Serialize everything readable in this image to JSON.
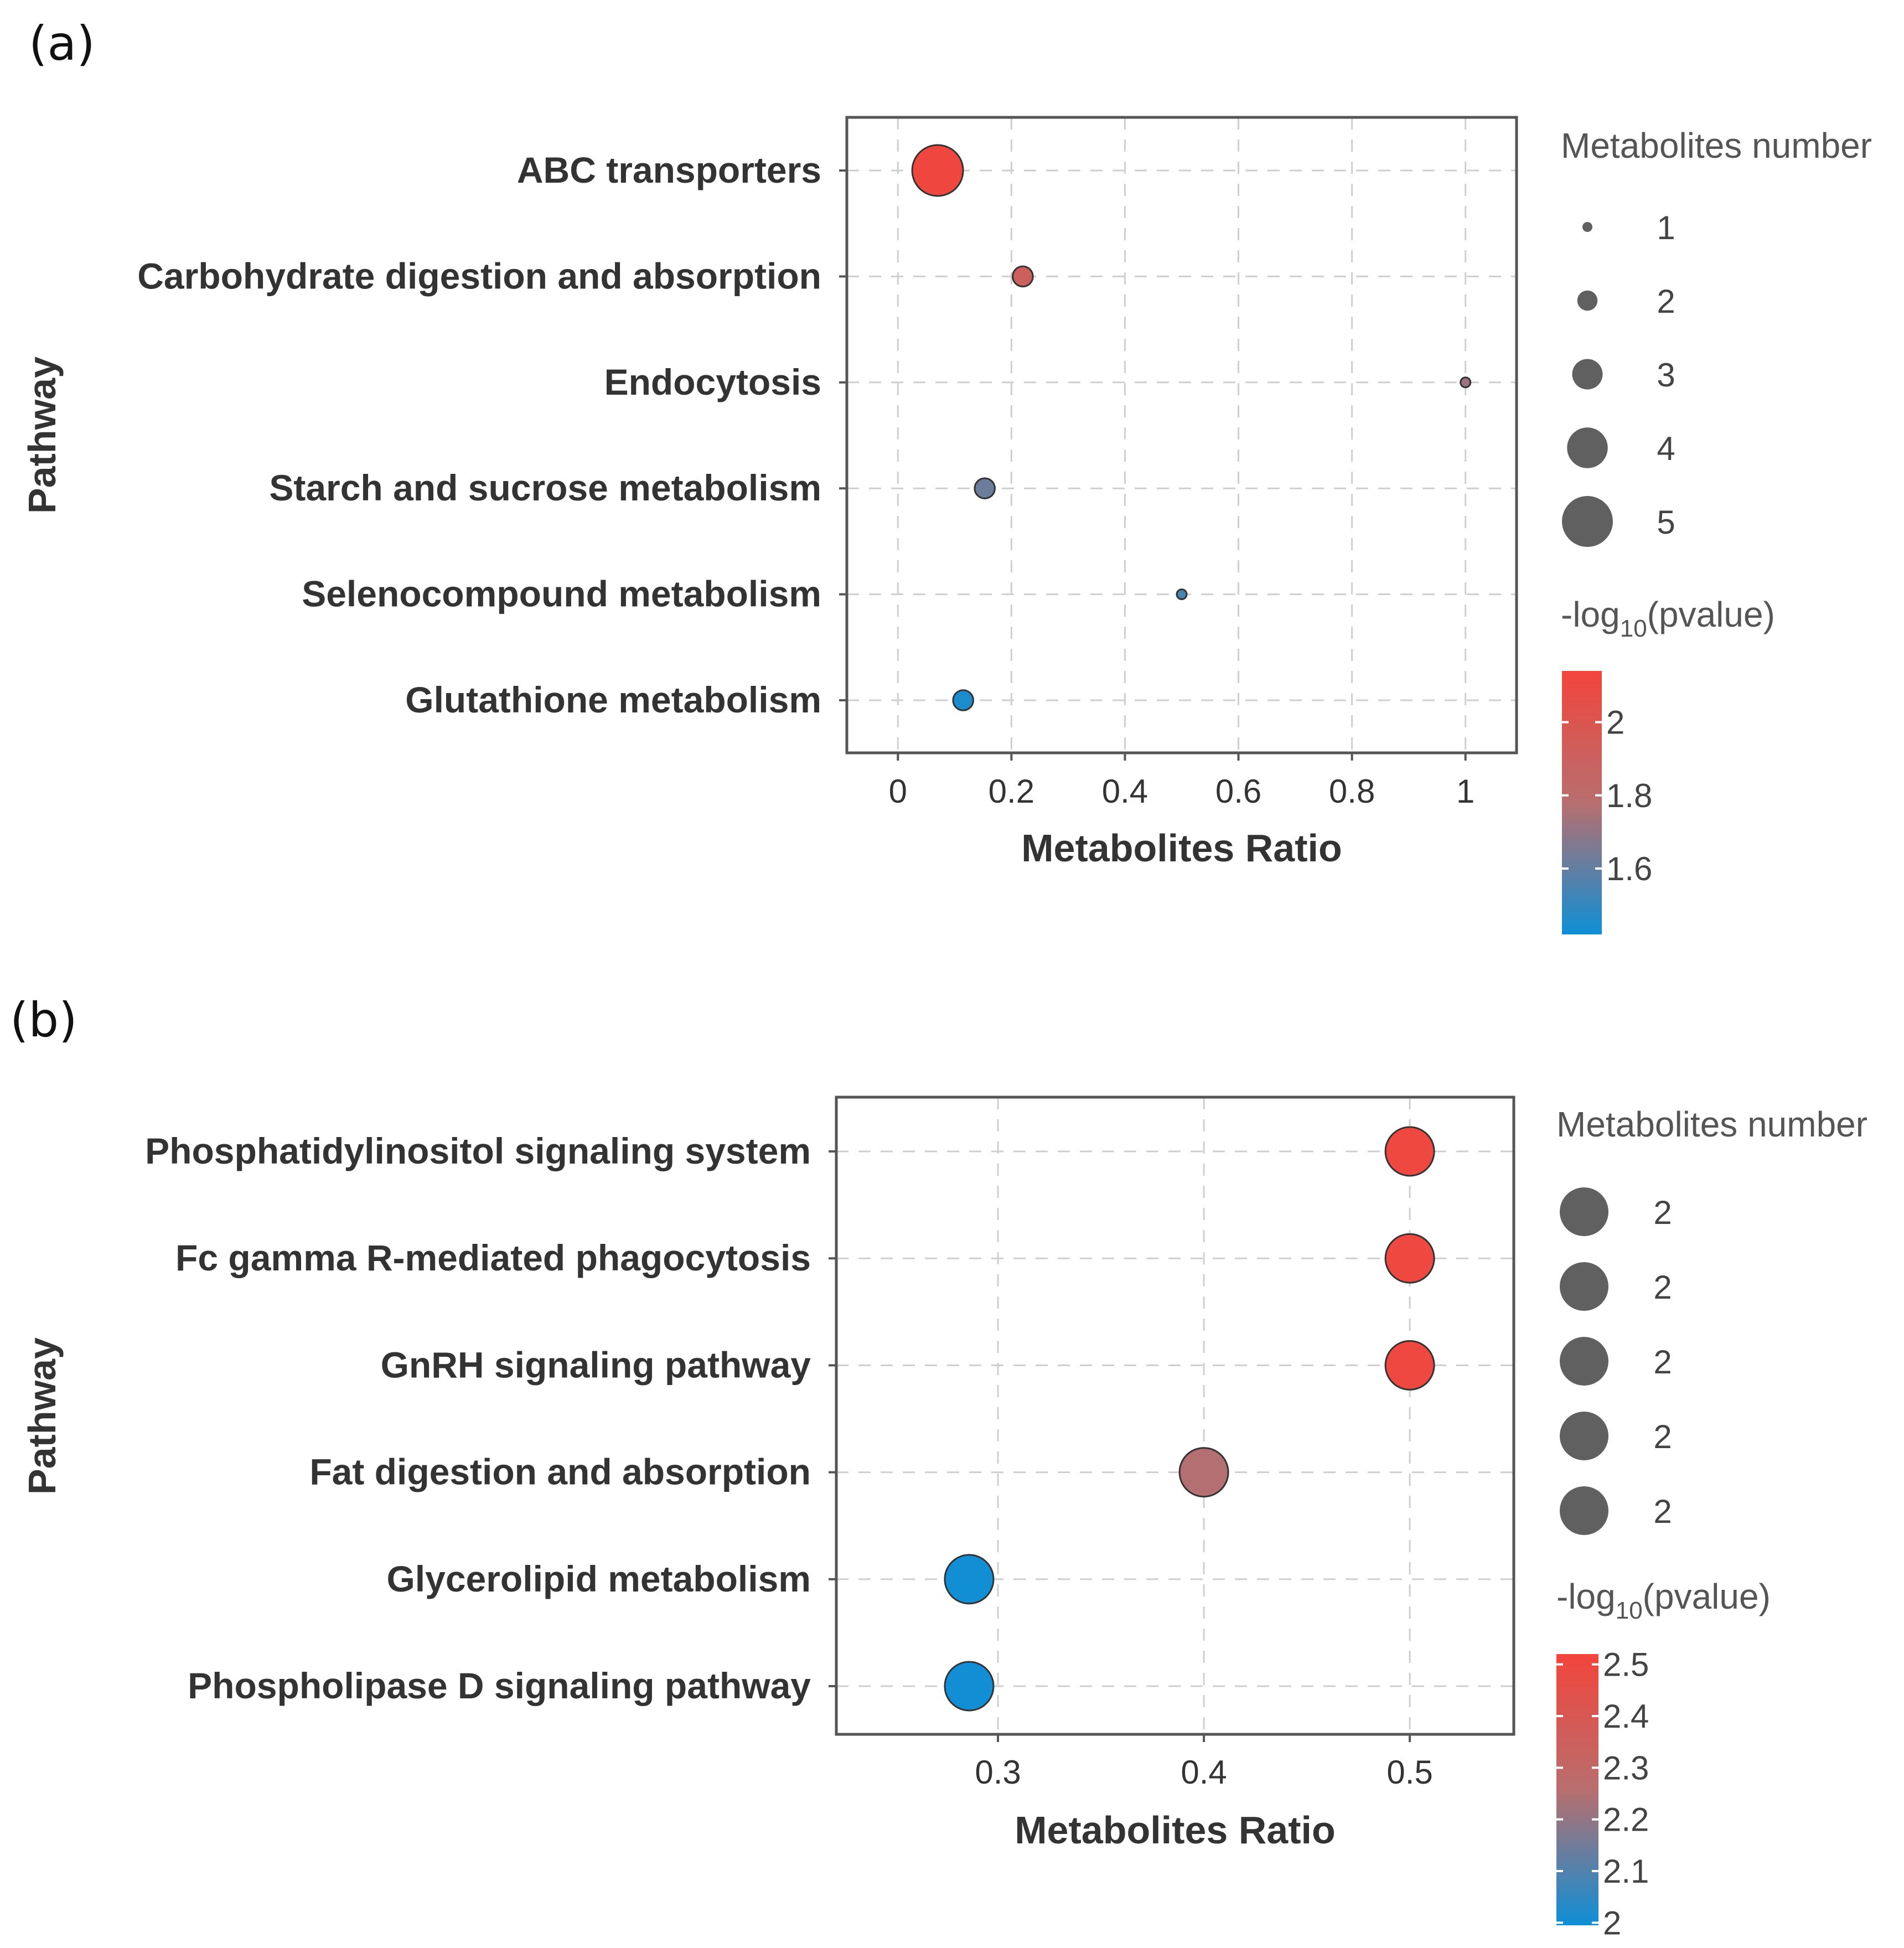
{
  "chart_data": [
    {
      "panel_label": "(a)",
      "type": "scatter",
      "xlabel": "Metabolites Ratio",
      "ylabel": "Pathway",
      "xlim": [
        -0.09,
        1.09
      ],
      "xticks": [
        0,
        0.2,
        0.4,
        0.6,
        0.8,
        1
      ],
      "xtick_labels": [
        "0",
        "0.2",
        "0.4",
        "0.6",
        "0.8",
        "1"
      ],
      "categories": [
        "ABC transporters",
        "Carbohydrate digestion and absorption",
        "Endocytosis",
        "Starch and sucrose metabolism",
        "Selenocompound metabolism",
        "Glutathione metabolism"
      ],
      "x": [
        0.07,
        0.22,
        1.0,
        0.153,
        0.5,
        0.115
      ],
      "size": [
        5,
        2,
        1,
        2,
        1,
        2
      ],
      "pvalue_neglog10": [
        2.12,
        1.9,
        1.72,
        1.62,
        1.55,
        1.45
      ],
      "size_legend": {
        "title": "Metabolites number",
        "values": [
          1,
          2,
          3,
          4,
          5
        ],
        "labels": [
          "1",
          "2",
          "3",
          "4",
          "5"
        ]
      },
      "color_legend": {
        "title_prefix": "-log",
        "title_sub": "10",
        "title_suffix": "(pvalue)",
        "range": [
          1.42,
          2.14
        ],
        "ticks": [
          2,
          1.8,
          1.6
        ],
        "tick_labels": [
          "2",
          "1.8",
          "1.6"
        ],
        "low_color": "#0e8fd6",
        "mid_color": "#b86e6e",
        "high_color": "#f2453c"
      }
    },
    {
      "panel_label": "(b)",
      "type": "scatter",
      "xlabel": "Metabolites Ratio",
      "ylabel": "Pathway",
      "xlim": [
        0.2215,
        0.5505
      ],
      "xticks": [
        0.3,
        0.4,
        0.5
      ],
      "xtick_labels": [
        "0.3",
        "0.4",
        "0.5"
      ],
      "categories": [
        "Phosphatidylinositol signaling system",
        "Fc gamma R-mediated phagocytosis",
        "GnRH signaling pathway",
        "Fat digestion and absorption",
        "Glycerolipid metabolism",
        "Phospholipase D signaling pathway"
      ],
      "x": [
        0.5,
        0.5,
        0.5,
        0.4,
        0.286,
        0.286
      ],
      "size": [
        2,
        2,
        2,
        2,
        2,
        2
      ],
      "pvalue_neglog10": [
        2.5,
        2.5,
        2.5,
        2.25,
        2.0,
        2.0
      ],
      "size_legend": {
        "title": "Metabolites number",
        "values": [
          2,
          2,
          2,
          2,
          2
        ],
        "labels": [
          "2",
          "2",
          "2",
          "2",
          "2"
        ]
      },
      "color_legend": {
        "title_prefix": "-log",
        "title_sub": "10",
        "title_suffix": "(pvalue)",
        "range": [
          1.995,
          2.52
        ],
        "ticks": [
          2.5,
          2.4,
          2.3,
          2.2,
          2.1,
          2
        ],
        "tick_labels": [
          "2.5",
          "2.4",
          "2.3",
          "2.2",
          "2.1",
          "2"
        ],
        "low_color": "#0e8fd6",
        "mid_color": "#b86e6e",
        "high_color": "#f2453c"
      }
    }
  ]
}
